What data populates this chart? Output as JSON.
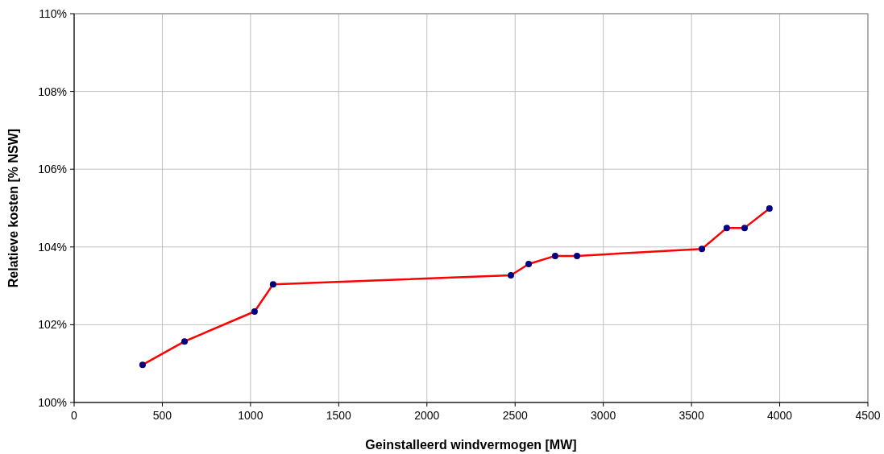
{
  "chart_data": {
    "type": "line",
    "xlabel": "Geinstalleerd windvermogen [MW]",
    "ylabel": "Relatieve kosten [% NSW]",
    "x": [
      388,
      626,
      1023,
      1128,
      2476,
      2577,
      2727,
      2851,
      3559,
      3700,
      3801,
      3942
    ],
    "series": [
      {
        "color": "#ff0000",
        "values": [
          100.97,
          101.57,
          102.34,
          103.04,
          103.27,
          103.56,
          103.77,
          103.77,
          103.95,
          104.49,
          104.49,
          104.99
        ]
      }
    ],
    "xlim": [
      0,
      4500
    ],
    "xticks": [
      0,
      500,
      1000,
      1500,
      2000,
      2500,
      3000,
      3500,
      4000,
      4500
    ],
    "ylim": [
      100,
      110
    ],
    "yticks": [
      {
        "value": 100,
        "label": "100%"
      },
      {
        "value": 102,
        "label": "102%"
      },
      {
        "value": 104,
        "label": "104%"
      },
      {
        "value": 106,
        "label": "106%"
      },
      {
        "value": 108,
        "label": "108%"
      },
      {
        "value": 110,
        "label": "110%"
      }
    ],
    "grid": true,
    "marker": "circle",
    "line_style": "solid"
  }
}
